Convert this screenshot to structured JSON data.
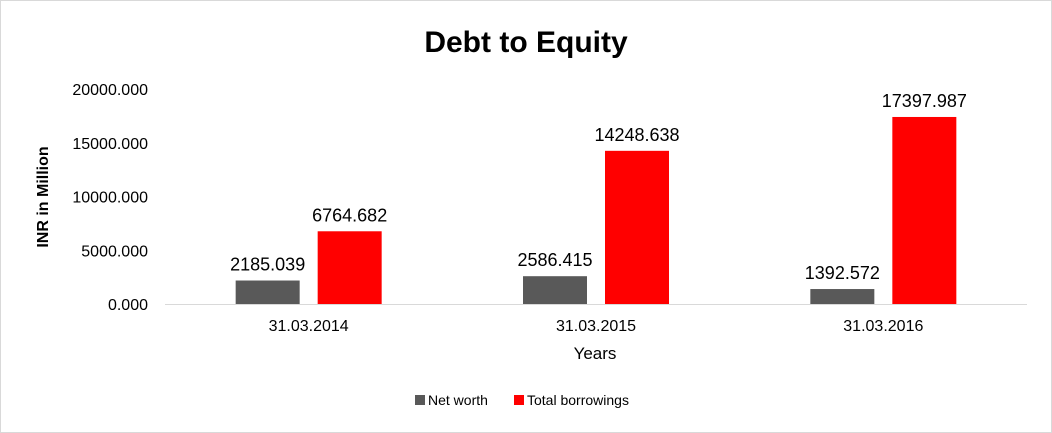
{
  "chart_data": {
    "type": "bar",
    "title": "Debt to Equity",
    "xlabel": "Years",
    "ylabel": "INR in Million",
    "categories": [
      "31.03.2014",
      "31.03.2015",
      "31.03.2016"
    ],
    "series": [
      {
        "name": "Net worth",
        "color": "#595959",
        "values": [
          2185.039,
          2586.415,
          1392.572
        ]
      },
      {
        "name": "Total borrowings",
        "color": "#ff0000",
        "values": [
          6764.682,
          14248.638,
          17397.987
        ]
      }
    ],
    "value_labels": [
      [
        "2185.039",
        "2586.415",
        "1392.572"
      ],
      [
        "6764.682",
        "14248.638",
        "17397.987"
      ]
    ],
    "ylim": [
      0,
      20000
    ],
    "yticks": [
      0,
      5000,
      10000,
      15000,
      20000
    ],
    "ytick_labels": [
      "0.000",
      "5000.000",
      "10000.000",
      "15000.000",
      "20000.000"
    ],
    "grid": false,
    "legend_position": "bottom"
  }
}
